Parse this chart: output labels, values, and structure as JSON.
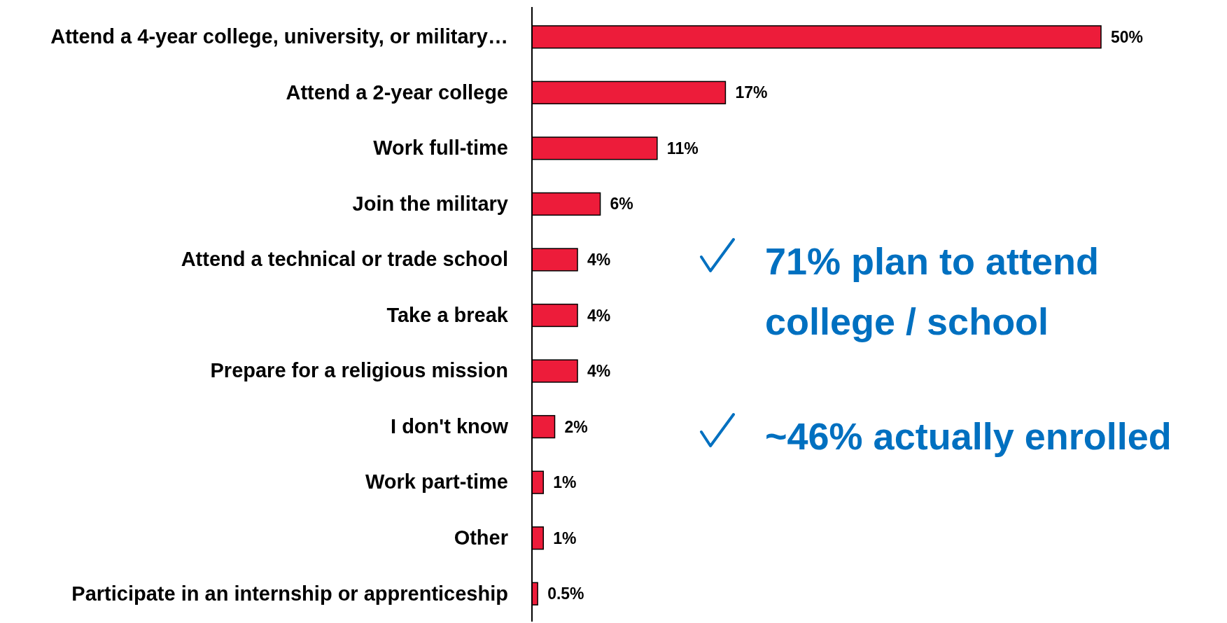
{
  "chart_data": {
    "type": "bar",
    "orientation": "horizontal",
    "categories": [
      "Attend a 4-year college, university, or military…",
      "Attend a 2-year college",
      "Work full-time",
      "Join the military",
      "Attend a technical or trade school",
      "Take a break",
      "Prepare for a religious mission",
      "I don't know",
      "Work part-time",
      "Other",
      "Participate in an internship or apprenticeship"
    ],
    "values": [
      50,
      17,
      11,
      6,
      4,
      4,
      4,
      2,
      1,
      1,
      0.5
    ],
    "value_labels": [
      "50%",
      "17%",
      "11%",
      "6%",
      "4%",
      "4%",
      "4%",
      "2%",
      "1%",
      "1%",
      "0.5%"
    ],
    "color": "#ed1c3a",
    "xlim": [
      0,
      50
    ],
    "tick_labels": "y",
    "annotations": [
      "71% plan to attend college / school",
      "~46% actually enrolled"
    ]
  }
}
